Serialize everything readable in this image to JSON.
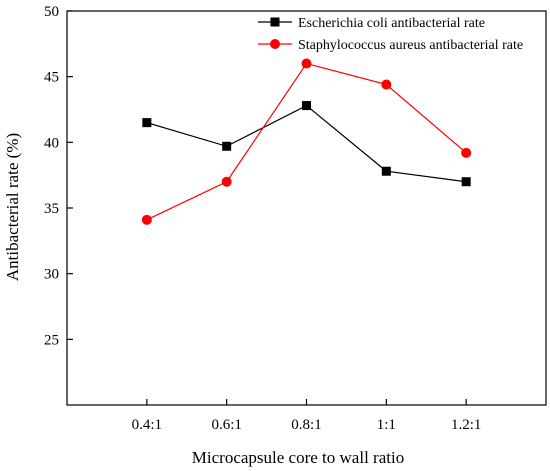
{
  "chart_data": {
    "type": "line",
    "categories": [
      "0.4:1",
      "0.6:1",
      "0.8:1",
      "1:1",
      "1.2:1"
    ],
    "series": [
      {
        "name": "Escherichia coli antibacterial rate",
        "color": "#000000",
        "marker": "square",
        "values": [
          41.5,
          39.7,
          42.8,
          37.8,
          37.0
        ]
      },
      {
        "name": "Staphylococcus aureus antibacterial rate",
        "color": "#ff0000",
        "marker": "circle",
        "values": [
          34.1,
          37.0,
          46.0,
          44.4,
          39.2
        ]
      }
    ],
    "xlabel": "Microcapsule core to wall ratio",
    "ylabel": "Antibacterial rate (%)",
    "ylim": [
      20,
      50
    ],
    "yticks": [
      25,
      30,
      35,
      40,
      45,
      50
    ],
    "grid": false,
    "legend_position": "top-right"
  }
}
